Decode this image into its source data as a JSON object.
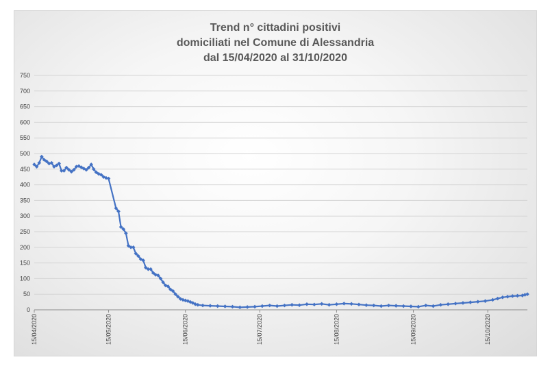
{
  "chart_data": {
    "type": "line",
    "title_lines": [
      "Trend n° cittadini positivi",
      "domiciliati nel Comune di Alessandria",
      "dal 15/04/2020 al 31/10/2020"
    ],
    "xlabel": "",
    "ylabel": "",
    "ylim": [
      0,
      750
    ],
    "yticks": [
      0,
      50,
      100,
      150,
      200,
      250,
      300,
      350,
      400,
      450,
      500,
      550,
      600,
      650,
      700,
      750
    ],
    "xlim": [
      "2020-04-15",
      "2020-10-31"
    ],
    "xticks": [
      "15/04/2020",
      "15/05/2020",
      "15/06/2020",
      "15/07/2020",
      "15/08/2020",
      "15/09/2020",
      "15/10/2020"
    ],
    "grid": true,
    "line_color": "#4472C4",
    "series": [
      {
        "points": [
          [
            "2020-04-15",
            465
          ],
          [
            "2020-04-16",
            458
          ],
          [
            "2020-04-17",
            470
          ],
          [
            "2020-04-18",
            490
          ],
          [
            "2020-04-19",
            480
          ],
          [
            "2020-04-20",
            475
          ],
          [
            "2020-04-21",
            468
          ],
          [
            "2020-04-22",
            470
          ],
          [
            "2020-04-23",
            458
          ],
          [
            "2020-04-24",
            462
          ],
          [
            "2020-04-25",
            468
          ],
          [
            "2020-04-26",
            445
          ],
          [
            "2020-04-27",
            445
          ],
          [
            "2020-04-28",
            455
          ],
          [
            "2020-04-29",
            448
          ],
          [
            "2020-04-30",
            442
          ],
          [
            "2020-05-01",
            448
          ],
          [
            "2020-05-02",
            458
          ],
          [
            "2020-05-03",
            460
          ],
          [
            "2020-05-04",
            456
          ],
          [
            "2020-05-05",
            452
          ],
          [
            "2020-05-06",
            448
          ],
          [
            "2020-05-07",
            455
          ],
          [
            "2020-05-08",
            465
          ],
          [
            "2020-05-09",
            450
          ],
          [
            "2020-05-10",
            440
          ],
          [
            "2020-05-11",
            435
          ],
          [
            "2020-05-12",
            432
          ],
          [
            "2020-05-13",
            425
          ],
          [
            "2020-05-14",
            422
          ],
          [
            "2020-05-15",
            420
          ],
          [
            "2020-05-18",
            325
          ],
          [
            "2020-05-19",
            315
          ],
          [
            "2020-05-20",
            265
          ],
          [
            "2020-05-21",
            258
          ],
          [
            "2020-05-22",
            245
          ],
          [
            "2020-05-23",
            205
          ],
          [
            "2020-05-24",
            200
          ],
          [
            "2020-05-25",
            200
          ],
          [
            "2020-05-26",
            180
          ],
          [
            "2020-05-27",
            172
          ],
          [
            "2020-05-28",
            162
          ],
          [
            "2020-05-29",
            158
          ],
          [
            "2020-05-30",
            135
          ],
          [
            "2020-05-31",
            130
          ],
          [
            "2020-06-01",
            130
          ],
          [
            "2020-06-02",
            118
          ],
          [
            "2020-06-03",
            112
          ],
          [
            "2020-06-04",
            110
          ],
          [
            "2020-06-05",
            100
          ],
          [
            "2020-06-06",
            88
          ],
          [
            "2020-06-07",
            78
          ],
          [
            "2020-06-08",
            75
          ],
          [
            "2020-06-09",
            65
          ],
          [
            "2020-06-10",
            60
          ],
          [
            "2020-06-11",
            50
          ],
          [
            "2020-06-12",
            42
          ],
          [
            "2020-06-13",
            35
          ],
          [
            "2020-06-14",
            32
          ],
          [
            "2020-06-15",
            30
          ],
          [
            "2020-06-16",
            28
          ],
          [
            "2020-06-17",
            25
          ],
          [
            "2020-06-18",
            22
          ],
          [
            "2020-06-19",
            18
          ],
          [
            "2020-06-20",
            16
          ],
          [
            "2020-06-22",
            14
          ],
          [
            "2020-06-25",
            13
          ],
          [
            "2020-06-28",
            12
          ],
          [
            "2020-07-01",
            11
          ],
          [
            "2020-07-04",
            10
          ],
          [
            "2020-07-07",
            8
          ],
          [
            "2020-07-10",
            9
          ],
          [
            "2020-07-13",
            10
          ],
          [
            "2020-07-16",
            12
          ],
          [
            "2020-07-19",
            14
          ],
          [
            "2020-07-22",
            12
          ],
          [
            "2020-07-25",
            14
          ],
          [
            "2020-07-28",
            16
          ],
          [
            "2020-07-31",
            15
          ],
          [
            "2020-08-03",
            18
          ],
          [
            "2020-08-06",
            17
          ],
          [
            "2020-08-09",
            19
          ],
          [
            "2020-08-12",
            16
          ],
          [
            "2020-08-15",
            18
          ],
          [
            "2020-08-18",
            20
          ],
          [
            "2020-08-21",
            19
          ],
          [
            "2020-08-24",
            17
          ],
          [
            "2020-08-27",
            15
          ],
          [
            "2020-08-30",
            14
          ],
          [
            "2020-09-02",
            12
          ],
          [
            "2020-09-05",
            14
          ],
          [
            "2020-09-08",
            13
          ],
          [
            "2020-09-11",
            12
          ],
          [
            "2020-09-14",
            11
          ],
          [
            "2020-09-17",
            10
          ],
          [
            "2020-09-20",
            14
          ],
          [
            "2020-09-23",
            12
          ],
          [
            "2020-09-26",
            16
          ],
          [
            "2020-09-29",
            18
          ],
          [
            "2020-10-02",
            20
          ],
          [
            "2020-10-05",
            22
          ],
          [
            "2020-10-08",
            24
          ],
          [
            "2020-10-11",
            26
          ],
          [
            "2020-10-14",
            28
          ],
          [
            "2020-10-17",
            32
          ],
          [
            "2020-10-19",
            36
          ],
          [
            "2020-10-21",
            40
          ],
          [
            "2020-10-23",
            42
          ],
          [
            "2020-10-25",
            44
          ],
          [
            "2020-10-27",
            45
          ],
          [
            "2020-10-29",
            46
          ],
          [
            "2020-10-30",
            48
          ],
          [
            "2020-10-31",
            50
          ]
        ]
      }
    ]
  }
}
